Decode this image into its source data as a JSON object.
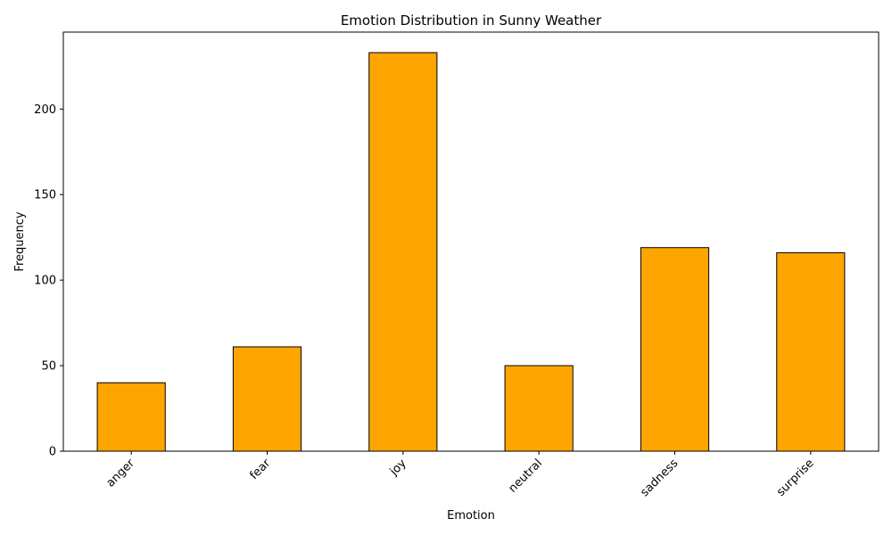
{
  "chart_data": {
    "type": "bar",
    "title": "Emotion Distribution in Sunny Weather",
    "xlabel": "Emotion",
    "ylabel": "Frequency",
    "categories": [
      "anger",
      "fear",
      "joy",
      "neutral",
      "sadness",
      "surprise"
    ],
    "values": [
      40,
      61,
      233,
      50,
      119,
      116
    ],
    "ylim": [
      0,
      245
    ],
    "yticks": [
      0,
      50,
      100,
      150,
      200
    ],
    "grid": false,
    "legend": "none",
    "x_tick_rotation_deg": 45,
    "colors": {
      "bar_fill": "#FFA500",
      "bar_edge": "#000000",
      "axis": "#000000",
      "background": "#FFFFFF"
    }
  }
}
